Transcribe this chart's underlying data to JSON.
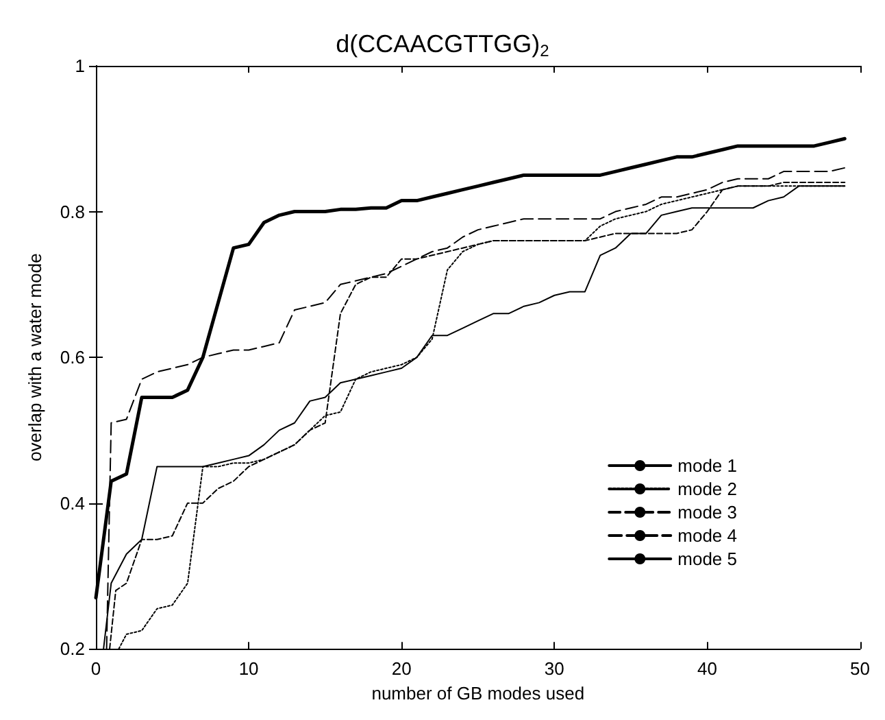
{
  "chart_data": {
    "type": "line",
    "title": "d(CCAACGTTGG)$_{2}$",
    "xlabel": "number of GB modes used",
    "ylabel": "overlap with a water mode",
    "xlim": [
      0,
      50
    ],
    "xticks": [
      0,
      10,
      20,
      30,
      40,
      50
    ],
    "ylim": [
      0.2,
      1
    ],
    "yticks": [
      0.2,
      0.4,
      0.6,
      0.8,
      1
    ],
    "grid": false,
    "legend": "right",
    "marker": "none",
    "series": [
      {
        "name": "mode 1",
        "color": "#000000",
        "line_style": "solid",
        "x": [
          0,
          1,
          2,
          3,
          4,
          5,
          6,
          7,
          8,
          9,
          10,
          11,
          12,
          13,
          14,
          15,
          16,
          17,
          18,
          19,
          20,
          21,
          22,
          23,
          24,
          25,
          26,
          27,
          28,
          29,
          30,
          31,
          32,
          33,
          34,
          35,
          36,
          37,
          38,
          39,
          40,
          41,
          42,
          43,
          44,
          45,
          46,
          47,
          48,
          49
        ],
        "values": [
          0.27,
          0.43,
          0.44,
          0.545,
          0.545,
          0.545,
          0.555,
          0.6,
          0.675,
          0.75,
          0.755,
          0.785,
          0.795,
          0.8,
          0.8,
          0.8,
          0.803,
          0.803,
          0.805,
          0.805,
          0.815,
          0.815,
          0.82,
          0.825,
          0.83,
          0.835,
          0.84,
          0.845,
          0.85,
          0.85,
          0.85,
          0.85,
          0.85,
          0.85,
          0.855,
          0.86,
          0.865,
          0.87,
          0.875,
          0.875,
          0.88,
          0.885,
          0.89,
          0.89,
          0.89,
          0.89,
          0.89,
          0.89,
          0.895,
          0.9
        ]
      },
      {
        "name": "mode 2",
        "color": "#000000",
        "line_style": "dotted",
        "x": [
          1.5,
          2,
          3,
          4,
          5,
          6,
          7,
          8,
          9,
          10,
          11,
          12,
          13,
          14,
          15,
          16,
          17,
          18,
          19,
          20,
          21,
          22,
          23,
          24,
          25,
          26,
          27,
          28,
          29,
          30,
          31,
          32,
          33,
          34,
          35,
          36,
          37,
          38,
          39,
          40,
          41,
          42,
          43,
          44,
          45,
          46,
          47,
          48,
          49
        ],
        "values": [
          0.2,
          0.22,
          0.225,
          0.255,
          0.26,
          0.29,
          0.45,
          0.45,
          0.455,
          0.455,
          0.46,
          0.47,
          0.48,
          0.5,
          0.52,
          0.525,
          0.57,
          0.58,
          0.585,
          0.59,
          0.6,
          0.625,
          0.72,
          0.745,
          0.755,
          0.76,
          0.76,
          0.76,
          0.76,
          0.76,
          0.76,
          0.76,
          0.78,
          0.79,
          0.795,
          0.8,
          0.81,
          0.815,
          0.82,
          0.825,
          0.83,
          0.835,
          0.835,
          0.835,
          0.835,
          0.835,
          0.835,
          0.835,
          0.835
        ]
      },
      {
        "name": "mode 3",
        "color": "#000000",
        "line_style": "dashed",
        "x": [
          0.9,
          1.3,
          2,
          3,
          4,
          5,
          6,
          7,
          8,
          9,
          10,
          11,
          12,
          13,
          14,
          15,
          16,
          17,
          18,
          19,
          20,
          21,
          22,
          23,
          24,
          25,
          26,
          27,
          28,
          29,
          30,
          31,
          32,
          33,
          34,
          35,
          36,
          37,
          38,
          39,
          40,
          41,
          42,
          43,
          44,
          45,
          46,
          47,
          48,
          49
        ],
        "values": [
          0.2,
          0.28,
          0.29,
          0.35,
          0.35,
          0.355,
          0.4,
          0.4,
          0.42,
          0.43,
          0.45,
          0.46,
          0.47,
          0.48,
          0.5,
          0.51,
          0.66,
          0.7,
          0.71,
          0.71,
          0.735,
          0.735,
          0.74,
          0.745,
          0.75,
          0.755,
          0.76,
          0.76,
          0.76,
          0.76,
          0.76,
          0.76,
          0.76,
          0.765,
          0.77,
          0.77,
          0.77,
          0.77,
          0.77,
          0.775,
          0.8,
          0.83,
          0.835,
          0.835,
          0.835,
          0.84,
          0.84,
          0.84,
          0.84,
          0.84
        ]
      },
      {
        "name": "mode 4",
        "color": "#000000",
        "line_style": "dashed",
        "x": [
          0.7,
          1,
          2,
          3,
          4,
          5,
          6,
          7,
          8,
          9,
          10,
          11,
          12,
          13,
          14,
          15,
          16,
          17,
          18,
          19,
          20,
          21,
          22,
          23,
          24,
          25,
          26,
          27,
          28,
          29,
          30,
          31,
          32,
          33,
          34,
          35,
          36,
          37,
          38,
          39,
          40,
          41,
          42,
          43,
          44,
          45,
          46,
          47,
          48,
          49
        ],
        "values": [
          0.2,
          0.51,
          0.515,
          0.57,
          0.58,
          0.585,
          0.59,
          0.6,
          0.605,
          0.61,
          0.61,
          0.615,
          0.62,
          0.665,
          0.67,
          0.675,
          0.7,
          0.705,
          0.71,
          0.715,
          0.725,
          0.735,
          0.745,
          0.75,
          0.765,
          0.775,
          0.78,
          0.785,
          0.79,
          0.79,
          0.79,
          0.79,
          0.79,
          0.79,
          0.8,
          0.805,
          0.81,
          0.82,
          0.82,
          0.825,
          0.83,
          0.84,
          0.845,
          0.845,
          0.845,
          0.855,
          0.855,
          0.855,
          0.855,
          0.86
        ]
      },
      {
        "name": "mode 5",
        "color": "#000000",
        "line_style": "solid",
        "x": [
          0.5,
          1,
          2,
          3,
          4,
          5,
          6,
          7,
          8,
          9,
          10,
          11,
          12,
          13,
          14,
          15,
          16,
          17,
          18,
          19,
          20,
          21,
          22,
          23,
          24,
          25,
          26,
          27,
          28,
          29,
          30,
          31,
          32,
          33,
          34,
          35,
          36,
          37,
          38,
          39,
          40,
          41,
          42,
          43,
          44,
          45,
          46,
          47,
          48,
          49
        ],
        "values": [
          0.2,
          0.29,
          0.33,
          0.35,
          0.45,
          0.45,
          0.45,
          0.45,
          0.455,
          0.46,
          0.465,
          0.48,
          0.5,
          0.51,
          0.54,
          0.545,
          0.565,
          0.57,
          0.575,
          0.58,
          0.585,
          0.6,
          0.63,
          0.63,
          0.64,
          0.65,
          0.66,
          0.66,
          0.67,
          0.675,
          0.685,
          0.69,
          0.69,
          0.74,
          0.75,
          0.77,
          0.77,
          0.795,
          0.8,
          0.805,
          0.805,
          0.805,
          0.805,
          0.805,
          0.815,
          0.82,
          0.835,
          0.835,
          0.835,
          0.835
        ]
      }
    ]
  }
}
